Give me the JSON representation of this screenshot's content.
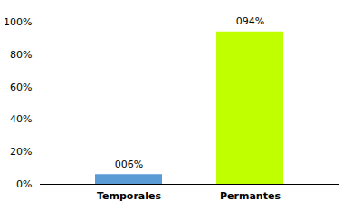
{
  "chart_data": {
    "type": "bar",
    "categories": [
      "Temporales",
      "Permantes"
    ],
    "values": [
      6,
      94
    ],
    "colors": [
      "#5B9BD5",
      "#BFFF00"
    ],
    "data_labels": true,
    "value_labels": [
      "006%",
      "094%"
    ],
    "ylim": [
      0,
      100
    ],
    "yticks": [
      {
        "value": 0,
        "label": "0%"
      },
      {
        "value": 20,
        "label": "20%"
      },
      {
        "value": 40,
        "label": "40%"
      },
      {
        "value": 60,
        "label": "60%"
      },
      {
        "value": 80,
        "label": "80%"
      },
      {
        "value": 100,
        "label": "100%"
      }
    ],
    "grid": false
  }
}
